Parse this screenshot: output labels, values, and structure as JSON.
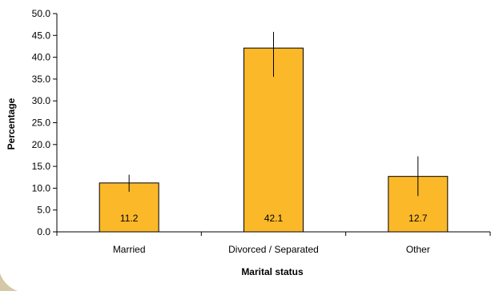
{
  "chart_data": {
    "type": "bar",
    "xlabel": "Marital status",
    "ylabel": "Percentage",
    "categories": [
      "Married",
      "Divorced / Separated",
      "Other"
    ],
    "values": [
      11.2,
      42.1,
      12.7
    ],
    "value_labels": [
      "11.2",
      "42.1",
      "12.7"
    ],
    "error_low": [
      9.2,
      35.5,
      8.2
    ],
    "error_high": [
      13.1,
      45.8,
      17.3
    ],
    "ylim": [
      0,
      50
    ],
    "yticks": [
      "0.0",
      "5.0",
      "10.0",
      "15.0",
      "20.0",
      "25.0",
      "30.0",
      "35.0",
      "40.0",
      "45.0",
      "50.0"
    ],
    "grid": false,
    "legend": "none",
    "colors": {
      "bar": "#FBB829",
      "bar_stroke": "#000000",
      "axis": "#000000",
      "background": "#FFFFFF",
      "outer_corner": "#D4C8A8"
    }
  }
}
